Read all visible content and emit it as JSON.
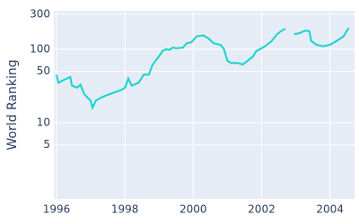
{
  "chart_data": {
    "type": "line",
    "y_label": "World Ranking",
    "log_y": true,
    "grid": true,
    "background": "#e5ecf6",
    "series": [
      {
        "color": "#17d3cd",
        "x": [
          1996.0,
          1996.05,
          1996.2,
          1996.3,
          1996.4,
          1996.45,
          1996.6,
          1996.7,
          1996.8,
          1996.9,
          1997.0,
          1997.05,
          1997.15,
          1997.3,
          1997.5,
          1997.7,
          1997.9,
          1998.0,
          1998.1,
          1998.2,
          1998.4,
          1998.55,
          1998.7,
          1998.8,
          1998.9,
          1999.0,
          1999.1,
          1999.2,
          1999.3,
          1999.4,
          1999.5,
          1999.7,
          1999.8,
          1999.95,
          2000.1,
          2000.3,
          2000.45,
          2000.6,
          2000.8,
          2000.9,
          2001.0,
          2001.1,
          2001.3,
          2001.45,
          2001.6,
          2001.75,
          2001.85,
          2001.95,
          2002.1,
          2002.3,
          2002.45,
          2002.6,
          2002.7,
          2002.8,
          2002.95,
          2003.1,
          2003.3,
          2003.4,
          2003.45,
          2003.6,
          2003.8,
          2004.0,
          2004.2,
          2004.4,
          2004.55
        ],
        "values": [
          45,
          35,
          38,
          40,
          42,
          32,
          30,
          33,
          25,
          22,
          20,
          16,
          20,
          22,
          24,
          26,
          28,
          30,
          40,
          32,
          35,
          45,
          45,
          60,
          70,
          80,
          95,
          100,
          98,
          105,
          103,
          105,
          120,
          125,
          150,
          155,
          140,
          120,
          115,
          100,
          70,
          65,
          65,
          62,
          70,
          80,
          95,
          100,
          110,
          130,
          160,
          180,
          190,
          null,
          160,
          165,
          180,
          175,
          130,
          115,
          110,
          115,
          130,
          150,
          195
        ]
      }
    ],
    "xlim": [
      1995.92,
      2004.72
    ],
    "xticks": [
      1996,
      1998,
      2000,
      2002,
      2004
    ],
    "ylim": [
      0.92,
      334
    ],
    "yticks": [
      5,
      10,
      50,
      100,
      300
    ]
  }
}
